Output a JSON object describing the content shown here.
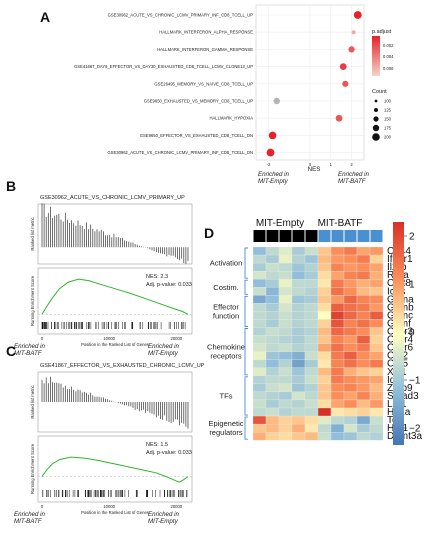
{
  "panels": {
    "A": "A",
    "B": "B",
    "C": "C",
    "D": "D"
  },
  "chart_data": [
    {
      "type": "scatter",
      "panel": "A",
      "categories": [
        "GSE30962_ACUTE_VS_CHRONIC_LCMV_PRIMARY_INF_CD8_TCELL_UP",
        "HALLMARK_INTERFERON_ALPHA_RESPONSE",
        "HALLMARK_INTERFERON_GAMMA_RESPONSE",
        "GSE41867_DAY6_EFFECTOR_VS_DAY30_EXHAUSTED_CD8_TCELL_LCMV_CLONE13_UP",
        "GSE26495_MEMORY_VS_NAIVE_CD8_TCELL_UP",
        "GSE9650_EXHAUSTED_VS_MEMORY_CD8_TCELL_UP",
        "HALLMARK_HYPOXIA",
        "GSE9650_EFFECTOR_VS_EXHAUSTED_CD8_TCELL_DN",
        "GSE30962_ACUTE_VS_CHRONIC_LCMV_PRIMARY_INF_CD8_TCELL_DN"
      ],
      "points": [
        {
          "nes": 2.3,
          "padj": 0.001,
          "count": 180
        },
        {
          "nes": 2.1,
          "padj": 0.006,
          "count": 40
        },
        {
          "nes": 2.0,
          "padj": 0.003,
          "count": 120
        },
        {
          "nes": 1.6,
          "padj": 0.002,
          "count": 140
        },
        {
          "nes": 1.7,
          "padj": 0.003,
          "count": 120
        },
        {
          "nes": -1.6,
          "padj": 0.007,
          "count": 130
        },
        {
          "nes": 1.4,
          "padj": 0.003,
          "count": 140
        },
        {
          "nes": -1.8,
          "padj": 0.001,
          "count": 170
        },
        {
          "nes": -1.9,
          "padj": 0.001,
          "count": 180
        }
      ],
      "xticks": [
        "-2",
        "0",
        "1",
        "2"
      ],
      "xlabel": "NES",
      "x_left_label": [
        "Enriched in",
        "MIT-Empty"
      ],
      "x_right_label": [
        "Enriched in",
        "MIT-BATF"
      ],
      "legend_padj_title": "p.adjust",
      "legend_padj_ticks": [
        "0.002",
        "0.004",
        "0.006"
      ],
      "legend_count_title": "Count",
      "legend_count_values": [
        "100",
        "125",
        "150",
        "175",
        "200"
      ],
      "colors": {
        "low": "#e8202a",
        "high": "#f2c5b8",
        "neutral": "#b5b5b5"
      }
    },
    {
      "type": "line",
      "panel": "B",
      "title": "GSE30962_ACUTE_VS_CHRONIC_LCMV_PRIMARY_UP",
      "top_ylabel": "Ranked list metric",
      "bottom_ylabel": "Running Enrichment Score",
      "xlabel": "Position in the Ranked List of Genes",
      "xticks": [
        "0",
        "10000",
        "20000"
      ],
      "nes_text": "NES: 2.3",
      "padj_text": "Adj. p-value: 0.033",
      "es_curve": [
        [
          0,
          0
        ],
        [
          0.03,
          0.1
        ],
        [
          0.07,
          0.22
        ],
        [
          0.12,
          0.35
        ],
        [
          0.18,
          0.44
        ],
        [
          0.25,
          0.48
        ],
        [
          0.32,
          0.46
        ],
        [
          0.4,
          0.41
        ],
        [
          0.5,
          0.35
        ],
        [
          0.6,
          0.29
        ],
        [
          0.7,
          0.22
        ],
        [
          0.8,
          0.15
        ],
        [
          0.9,
          0.08
        ],
        [
          0.96,
          0.04
        ],
        [
          1,
          0
        ]
      ],
      "left_label": [
        "Enriched in",
        "MIT-BATF"
      ],
      "right_label": [
        "Enriched in",
        "MIT-Empty"
      ]
    },
    {
      "type": "line",
      "panel": "C",
      "title": "GSE41867_EFFECTOR_VS_EXHAUSTED_CHRONIC_LCMV_UP",
      "top_ylabel": "Ranked list metric",
      "bottom_ylabel": "Running Enrichment Score",
      "xlabel": "Position in the Ranked List of Genes",
      "xticks": [
        "0",
        "10000",
        "20000"
      ],
      "nes_text": "NES: 1.5",
      "padj_text": "Adj. p-value: 0.033",
      "es_curve": [
        [
          0,
          0
        ],
        [
          0.03,
          0.1
        ],
        [
          0.07,
          0.2
        ],
        [
          0.12,
          0.27
        ],
        [
          0.2,
          0.31
        ],
        [
          0.3,
          0.29
        ],
        [
          0.4,
          0.25
        ],
        [
          0.5,
          0.2
        ],
        [
          0.6,
          0.15
        ],
        [
          0.7,
          0.1
        ],
        [
          0.78,
          0.06
        ],
        [
          0.85,
          0.0
        ],
        [
          0.9,
          -0.05
        ],
        [
          0.94,
          -0.09
        ],
        [
          0.97,
          -0.05
        ],
        [
          1,
          0
        ]
      ],
      "left_label": [
        "Enriched in",
        "MIT-BATF"
      ],
      "right_label": [
        "Enriched in",
        "MIT-Empty"
      ]
    },
    {
      "type": "heatmap",
      "panel": "D",
      "column_groups": [
        "MIT-Empty",
        "MIT-BATF"
      ],
      "colorbar_ticks": [
        "2",
        "1",
        "0",
        "−1",
        "−2"
      ],
      "row_groups": [
        {
          "label": [
            "Activation"
          ],
          "rows": [
            0,
            3
          ]
        },
        {
          "label": [
            "Costim."
          ],
          "rows": [
            4,
            5
          ]
        },
        {
          "label": [
            "Effector",
            "function"
          ],
          "rows": [
            6,
            9
          ]
        },
        {
          "label": [
            "Chemokine",
            "receptors"
          ],
          "rows": [
            10,
            15
          ]
        },
        {
          "label": [
            "TFs"
          ],
          "rows": [
            16,
            20
          ]
        },
        {
          "label": [
            "Epigenetic",
            "regulators"
          ],
          "rows": [
            21,
            23
          ]
        }
      ],
      "genes": [
        "Cd44",
        "Ifngr1",
        "Il2rb",
        "Rara",
        "Cd28",
        "Icos",
        "Gzma",
        "Gzmb",
        "Gzmc",
        "Gzmf",
        "Cxcr3",
        "Cxcr4",
        "Cxcr6",
        "Ccr2",
        "Ccr5",
        "Xcl1",
        "Id2",
        "Zbtb9",
        "Smad3",
        "Lef1",
        "Hif1a",
        "Tox",
        "Hat1",
        "Dnmt3a"
      ],
      "values": [
        [
          -1.0,
          -0.6,
          -0.3,
          -0.8,
          -0.5,
          0.5,
          1.0,
          1.2,
          0.8,
          0.9
        ],
        [
          -0.6,
          -0.8,
          -0.2,
          -0.7,
          -0.9,
          0.6,
          0.9,
          1.0,
          1.2,
          0.4
        ],
        [
          -0.8,
          -0.5,
          -0.6,
          -0.9,
          -0.7,
          0.5,
          1.1,
          0.9,
          1.0,
          0.8
        ],
        [
          -0.4,
          -0.6,
          -0.5,
          -1.0,
          -0.8,
          0.3,
          0.8,
          1.1,
          1.2,
          0.7
        ],
        [
          -1.0,
          -0.8,
          -0.2,
          -0.6,
          -0.6,
          0.2,
          1.2,
          0.9,
          0.7,
          0.8
        ],
        [
          -0.5,
          -1.1,
          -0.4,
          -0.6,
          -0.7,
          0.4,
          1.3,
          1.0,
          0.6,
          0.5
        ],
        [
          -1.3,
          -1.0,
          -0.2,
          -0.9,
          -0.8,
          0.5,
          0.9,
          1.4,
          1.1,
          1.0
        ],
        [
          -0.6,
          -0.8,
          -0.4,
          -0.7,
          -0.6,
          0.3,
          1.5,
          1.3,
          1.2,
          0.9
        ],
        [
          -0.6,
          -0.7,
          -0.5,
          -0.7,
          -0.6,
          0.0,
          1.8,
          1.4,
          1.1,
          1.5
        ],
        [
          -0.6,
          -0.8,
          -0.5,
          -0.7,
          -0.6,
          0.4,
          1.6,
          1.1,
          1.3,
          1.0
        ],
        [
          -0.7,
          -0.5,
          -0.6,
          -0.8,
          -0.7,
          0.6,
          1.4,
          1.2,
          1.0,
          0.5
        ],
        [
          -0.5,
          -0.6,
          -0.7,
          -0.8,
          -0.6,
          0.5,
          1.1,
          0.9,
          1.5,
          0.4
        ],
        [
          -0.4,
          -0.6,
          -0.5,
          -0.7,
          -0.6,
          0.8,
          1.3,
          1.0,
          1.2,
          0.5
        ],
        [
          -0.2,
          -0.9,
          -1.0,
          -1.2,
          -0.5,
          0.3,
          1.2,
          1.5,
          1.0,
          0.8
        ],
        [
          -0.6,
          -1.0,
          -0.7,
          -1.4,
          -0.8,
          0.2,
          1.1,
          1.3,
          1.0,
          1.2
        ],
        [
          -0.3,
          -0.7,
          -0.5,
          -0.9,
          -0.6,
          0.6,
          1.2,
          0.7,
          0.5,
          0.4
        ],
        [
          -0.7,
          -0.6,
          -0.6,
          -0.8,
          -0.5,
          0.4,
          1.2,
          1.0,
          0.9,
          0.8
        ],
        [
          -0.8,
          -0.5,
          -0.4,
          -0.9,
          -0.7,
          0.5,
          1.0,
          1.1,
          0.9,
          0.6
        ],
        [
          -0.6,
          -0.7,
          -0.8,
          -0.4,
          -0.6,
          0.5,
          1.0,
          0.8,
          1.1,
          0.7
        ],
        [
          -0.5,
          -0.8,
          -0.6,
          -0.7,
          -0.5,
          0.3,
          0.8,
          1.0,
          0.6,
          0.9
        ],
        [
          -0.6,
          -0.5,
          -0.7,
          -0.6,
          -0.6,
          2.0,
          0.2,
          0.3,
          0.4,
          0.2
        ],
        [
          1.6,
          0.6,
          0.4,
          0.5,
          0.3,
          -0.3,
          -0.6,
          -0.7,
          -1.3,
          -0.5
        ],
        [
          0.5,
          0.6,
          0.4,
          0.7,
          0.2,
          -0.6,
          -1.2,
          -0.4,
          -0.8,
          -0.6
        ],
        [
          0.7,
          0.4,
          0.3,
          0.5,
          0.6,
          -0.5,
          -1.0,
          -0.9,
          -0.6,
          -0.7
        ]
      ]
    }
  ]
}
